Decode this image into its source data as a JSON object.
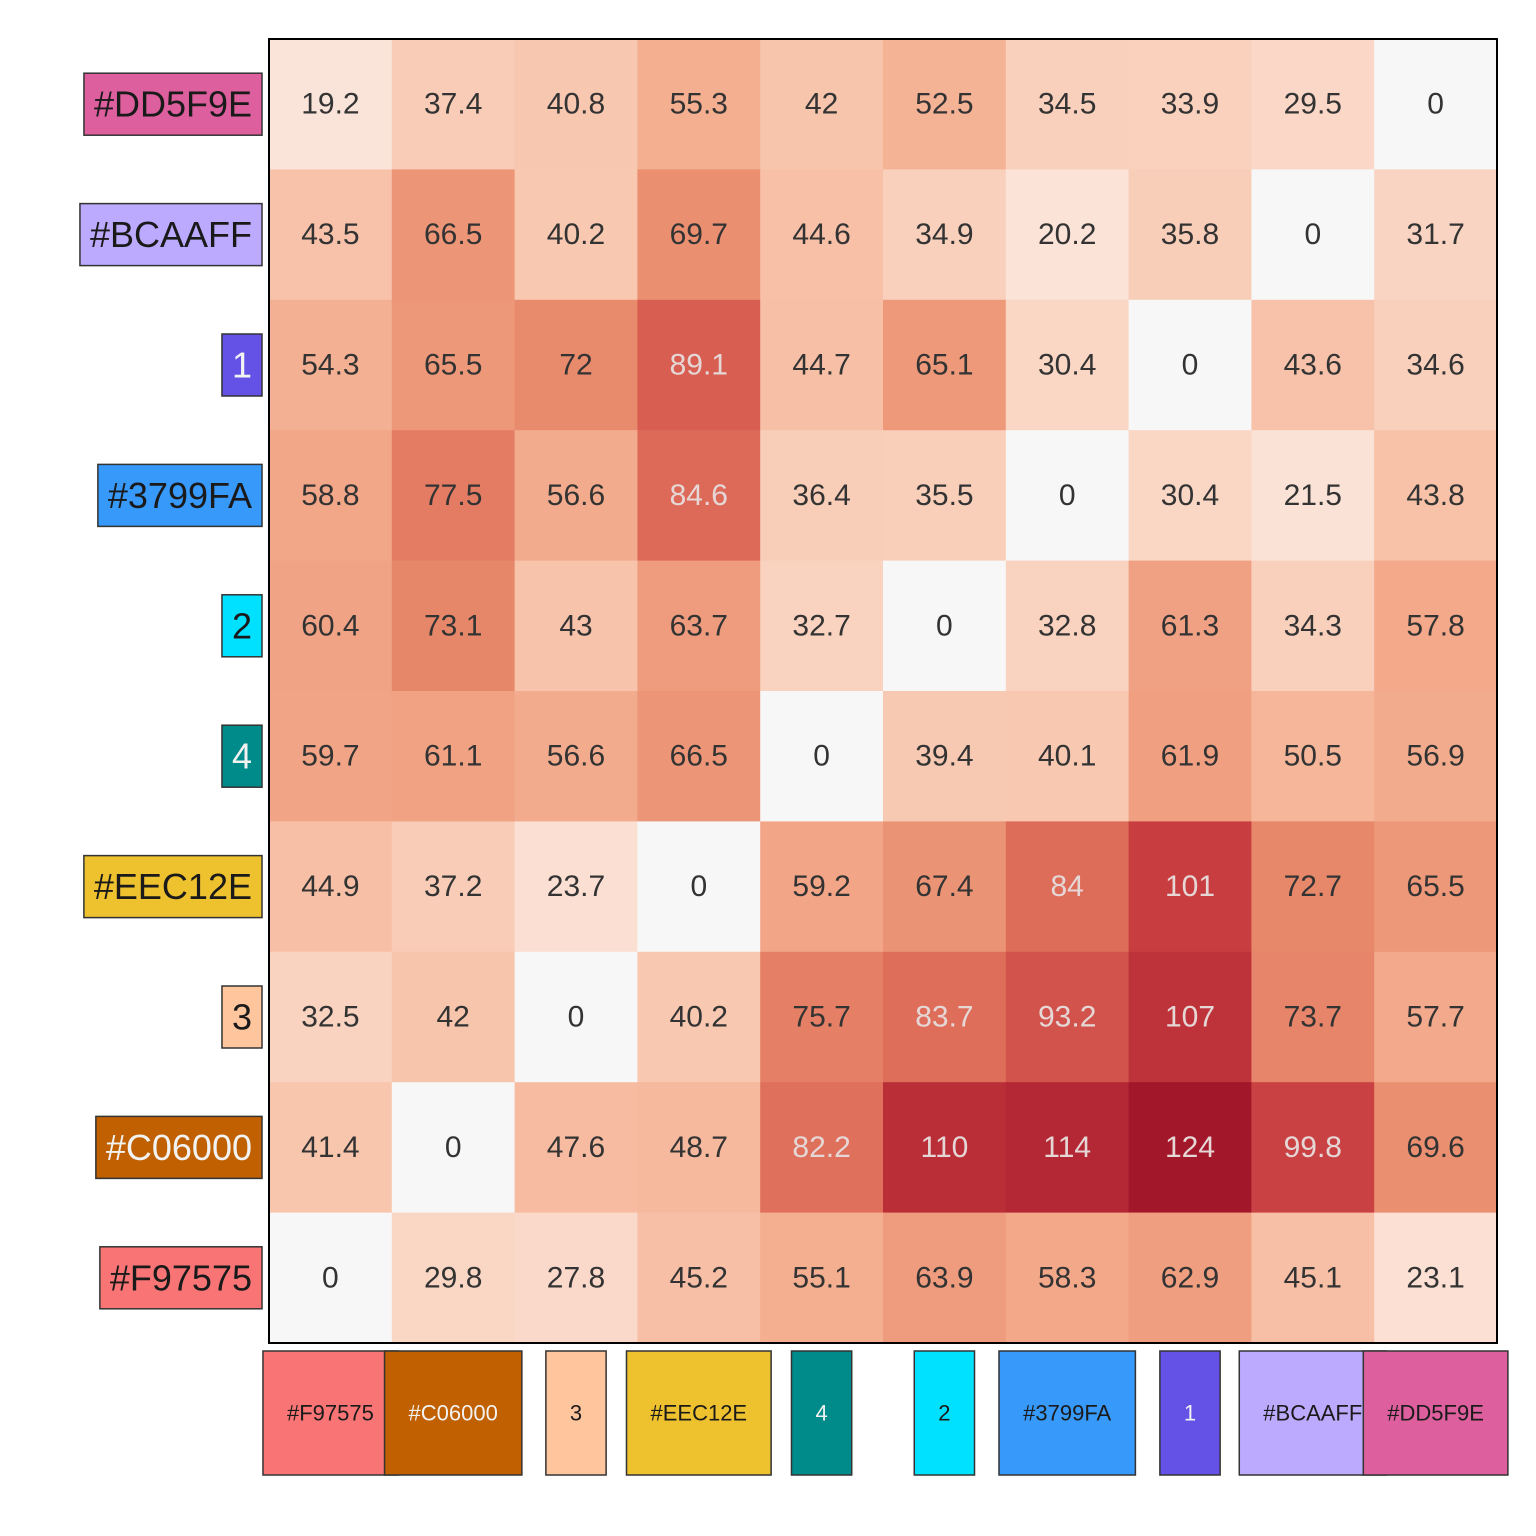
{
  "chart_data": {
    "type": "heatmap",
    "title": "",
    "xlabel": "",
    "ylabel": "",
    "grid": false,
    "legend": "none",
    "value_range": [
      0,
      124
    ],
    "color_scale": {
      "low": "#f7f7f7",
      "mid": "#f4a582",
      "high": "#a50f15"
    },
    "colors": {
      "#DD5F9E": "#DD5F9E",
      "#BCAAFF": "#BCAAFF",
      "1": "#6451E6",
      "#3799FA": "#3799FA",
      "2": "#00E0FF",
      "4": "#008B8B",
      "#EEC12E": "#EEC12E",
      "3": "#FFC59D",
      "#C06000": "#C06000",
      "#F97575": "#F97575"
    },
    "rows": [
      "#DD5F9E",
      "#BCAAFF",
      "1",
      "#3799FA",
      "2",
      "4",
      "#EEC12E",
      "3",
      "#C06000",
      "#F97575"
    ],
    "columns": [
      "#F97575",
      "#C06000",
      "3",
      "#EEC12E",
      "4",
      "2",
      "#3799FA",
      "1",
      "#BCAAFF",
      "#DD5F9E"
    ],
    "values": [
      [
        "19.2",
        "37.4",
        "40.8",
        "55.3",
        "42",
        "52.5",
        "34.5",
        "33.9",
        "29.5",
        "0"
      ],
      [
        "43.5",
        "66.5",
        "40.2",
        "69.7",
        "44.6",
        "34.9",
        "20.2",
        "35.8",
        "0",
        "31.7"
      ],
      [
        "54.3",
        "65.5",
        "72",
        "89.1",
        "44.7",
        "65.1",
        "30.4",
        "0",
        "43.6",
        "34.6"
      ],
      [
        "58.8",
        "77.5",
        "56.6",
        "84.6",
        "36.4",
        "35.5",
        "0",
        "30.4",
        "21.5",
        "43.8"
      ],
      [
        "60.4",
        "73.1",
        "43",
        "63.7",
        "32.7",
        "0",
        "32.8",
        "61.3",
        "34.3",
        "57.8"
      ],
      [
        "59.7",
        "61.1",
        "56.6",
        "66.5",
        "0",
        "39.4",
        "40.1",
        "61.9",
        "50.5",
        "56.9"
      ],
      [
        "44.9",
        "37.2",
        "23.7",
        "0",
        "59.2",
        "67.4",
        "84",
        "101",
        "72.7",
        "65.5"
      ],
      [
        "32.5",
        "42",
        "0",
        "40.2",
        "75.7",
        "83.7",
        "93.2",
        "107",
        "73.7",
        "57.7"
      ],
      [
        "41.4",
        "0",
        "47.6",
        "48.7",
        "82.2",
        "110",
        "114",
        "124",
        "99.8",
        "69.6"
      ],
      [
        "0",
        "29.8",
        "27.8",
        "45.2",
        "55.1",
        "63.9",
        "58.3",
        "62.9",
        "45.1",
        "23.1"
      ]
    ]
  }
}
